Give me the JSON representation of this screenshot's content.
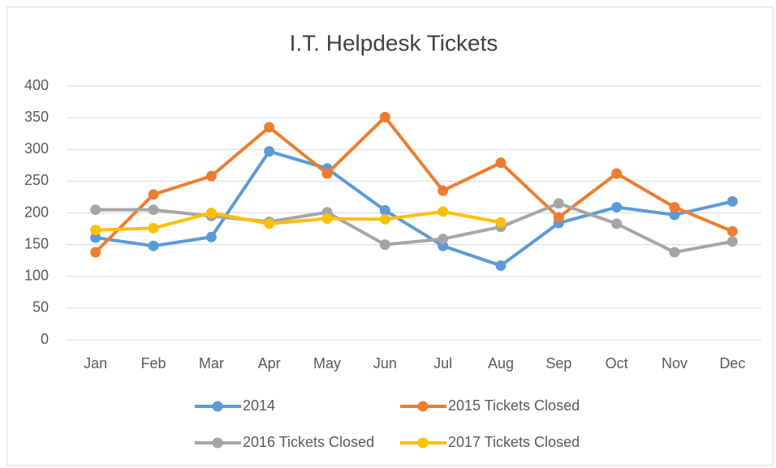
{
  "chart_data": {
    "type": "line",
    "title": "I.T. Helpdesk Tickets",
    "categories": [
      "Jan",
      "Feb",
      "Mar",
      "Apr",
      "May",
      "Jun",
      "Jul",
      "Aug",
      "Sep",
      "Oct",
      "Nov",
      "Dec"
    ],
    "series": [
      {
        "name": "2014",
        "color": "#5b9bd5",
        "values": [
          161,
          148,
          162,
          297,
          270,
          204,
          148,
          117,
          184,
          209,
          197,
          218
        ]
      },
      {
        "name": "2015 Tickets Closed",
        "color": "#ed7d31",
        "values": [
          138,
          229,
          258,
          335,
          262,
          351,
          235,
          279,
          193,
          262,
          209,
          171
        ]
      },
      {
        "name": "2016 Tickets Closed",
        "color": "#a5a5a5",
        "values": [
          205,
          205,
          195,
          186,
          201,
          150,
          159,
          178,
          215,
          183,
          138,
          155
        ]
      },
      {
        "name": "2017 Tickets Closed",
        "color": "#ffc000",
        "values": [
          173,
          176,
          200,
          183,
          191,
          190,
          202,
          185,
          null,
          null,
          null,
          null
        ]
      }
    ],
    "ylim": [
      0,
      400
    ],
    "yticks": [
      0,
      50,
      100,
      150,
      200,
      250,
      300,
      350,
      400
    ],
    "grid": true,
    "legend": "bottom"
  }
}
